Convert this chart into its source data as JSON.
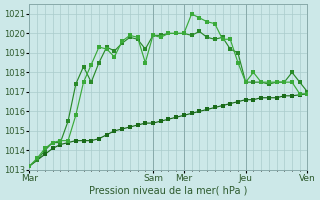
{
  "xlabel": "Pression niveau de la mer( hPa )",
  "bg_color": "#cce8e8",
  "grid_color": "#aacccc",
  "line_color1": "#1a6b1a",
  "line_color2": "#2a8a2a",
  "line_color3": "#3aaa3a",
  "ylim": [
    1013,
    1021.5
  ],
  "yticks": [
    1013,
    1014,
    1015,
    1016,
    1017,
    1018,
    1019,
    1020,
    1021
  ],
  "day_positions": [
    0,
    96,
    120,
    168,
    216
  ],
  "day_labels": [
    "Mar",
    "Sam",
    "Mer",
    "Jeu",
    "Ven"
  ],
  "series1_x": [
    0,
    6,
    12,
    18,
    24,
    30,
    36,
    42,
    48,
    54,
    60,
    66,
    72,
    78,
    84,
    90,
    96,
    102,
    108,
    114,
    120,
    126,
    132,
    138,
    144,
    150,
    156,
    162,
    168,
    174,
    180,
    186,
    192,
    198,
    204,
    210,
    216
  ],
  "series1_y": [
    1013.2,
    1013.5,
    1013.8,
    1014.1,
    1014.3,
    1014.4,
    1014.5,
    1014.5,
    1014.5,
    1014.6,
    1014.8,
    1015.0,
    1015.1,
    1015.2,
    1015.3,
    1015.4,
    1015.4,
    1015.5,
    1015.6,
    1015.7,
    1015.8,
    1015.9,
    1016.0,
    1016.1,
    1016.2,
    1016.3,
    1016.4,
    1016.5,
    1016.6,
    1016.6,
    1016.7,
    1016.7,
    1016.7,
    1016.8,
    1016.8,
    1016.85,
    1016.9
  ],
  "series2_x": [
    0,
    6,
    12,
    18,
    24,
    30,
    36,
    42,
    48,
    54,
    60,
    66,
    72,
    78,
    84,
    90,
    96,
    102,
    108,
    114,
    120,
    126,
    132,
    138,
    144,
    150,
    156,
    162,
    168,
    174,
    180,
    186,
    192,
    198,
    204,
    210,
    216
  ],
  "series2_y": [
    1013.2,
    1013.5,
    1014.0,
    1014.4,
    1014.4,
    1015.5,
    1017.4,
    1018.3,
    1017.5,
    1018.5,
    1019.3,
    1019.1,
    1019.5,
    1019.8,
    1019.7,
    1019.2,
    1019.9,
    1019.9,
    1020.0,
    1020.0,
    1020.0,
    1019.9,
    1020.1,
    1019.8,
    1019.7,
    1019.8,
    1019.2,
    1019.0,
    1017.5,
    1017.5,
    1017.5,
    1017.4,
    1017.5,
    1017.5,
    1018.0,
    1017.5,
    1017.0
  ],
  "series3_x": [
    0,
    6,
    12,
    18,
    24,
    30,
    36,
    42,
    48,
    54,
    60,
    66,
    72,
    78,
    84,
    90,
    96,
    102,
    108,
    114,
    120,
    126,
    132,
    138,
    144,
    150,
    156,
    162,
    168,
    174,
    180,
    186,
    192,
    198,
    204,
    210,
    216
  ],
  "series3_y": [
    1013.2,
    1013.6,
    1014.1,
    1014.4,
    1014.5,
    1014.5,
    1015.8,
    1017.5,
    1018.4,
    1019.3,
    1019.2,
    1018.8,
    1019.6,
    1019.9,
    1019.8,
    1018.5,
    1019.9,
    1019.8,
    1020.0,
    1020.0,
    1020.0,
    1021.0,
    1020.8,
    1020.6,
    1020.5,
    1019.7,
    1019.7,
    1018.5,
    1017.5,
    1018.0,
    1017.5,
    1017.5,
    1017.5,
    1017.5,
    1017.5,
    1016.9,
    1016.9
  ]
}
